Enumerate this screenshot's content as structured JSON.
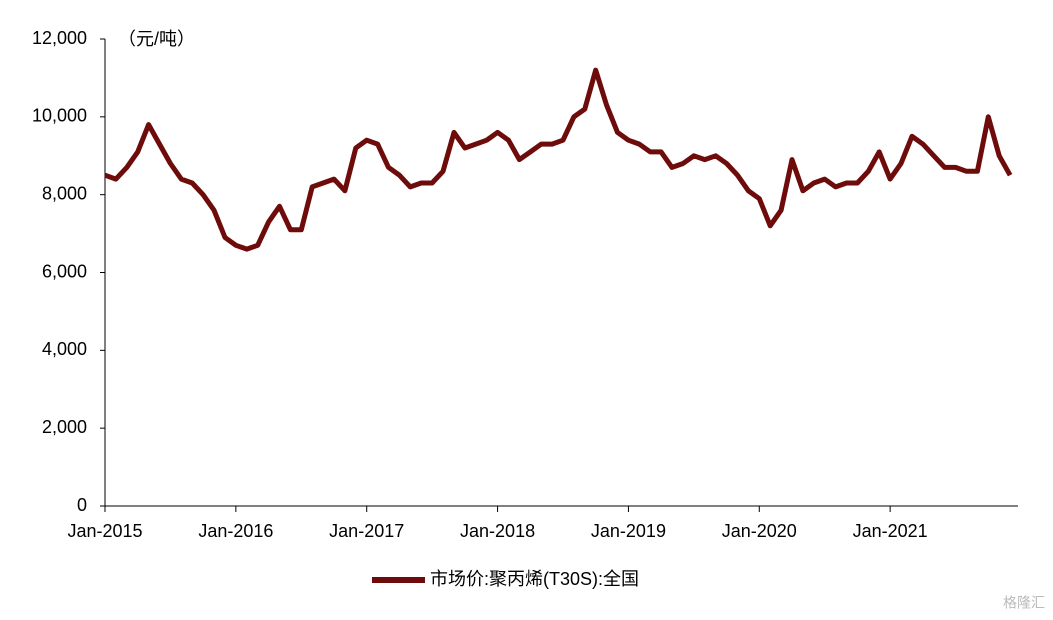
{
  "chart_data": {
    "type": "line",
    "unit_label": "（元/吨）",
    "x": [
      "2015-01",
      "2015-02",
      "2015-03",
      "2015-04",
      "2015-05",
      "2015-06",
      "2015-07",
      "2015-08",
      "2015-09",
      "2015-10",
      "2015-11",
      "2015-12",
      "2016-01",
      "2016-02",
      "2016-03",
      "2016-04",
      "2016-05",
      "2016-06",
      "2016-07",
      "2016-08",
      "2016-09",
      "2016-10",
      "2016-11",
      "2016-12",
      "2017-01",
      "2017-02",
      "2017-03",
      "2017-04",
      "2017-05",
      "2017-06",
      "2017-07",
      "2017-08",
      "2017-09",
      "2017-10",
      "2017-11",
      "2017-12",
      "2018-01",
      "2018-02",
      "2018-03",
      "2018-04",
      "2018-05",
      "2018-06",
      "2018-07",
      "2018-08",
      "2018-09",
      "2018-10",
      "2018-11",
      "2018-12",
      "2019-01",
      "2019-02",
      "2019-03",
      "2019-04",
      "2019-05",
      "2019-06",
      "2019-07",
      "2019-08",
      "2019-09",
      "2019-10",
      "2019-11",
      "2019-12",
      "2020-01",
      "2020-02",
      "2020-03",
      "2020-04",
      "2020-05",
      "2020-06",
      "2020-07",
      "2020-08",
      "2020-09",
      "2020-10",
      "2020-11",
      "2020-12",
      "2021-01",
      "2021-02",
      "2021-03",
      "2021-04",
      "2021-05",
      "2021-06",
      "2021-07",
      "2021-08",
      "2021-09",
      "2021-10",
      "2021-11",
      "2021-12"
    ],
    "series": [
      {
        "name": "市场价:聚丙烯(T30S):全国",
        "color": "#6e0b0b",
        "values": [
          8500,
          8400,
          8700,
          9100,
          9800,
          9300,
          8800,
          8400,
          8300,
          8000,
          7600,
          6900,
          6700,
          6600,
          6700,
          7300,
          7700,
          7100,
          7100,
          8200,
          8300,
          8400,
          8100,
          9200,
          9400,
          9300,
          8700,
          8500,
          8200,
          8300,
          8300,
          8600,
          9600,
          9200,
          9300,
          9400,
          9600,
          9400,
          8900,
          9100,
          9300,
          9300,
          9400,
          10000,
          10200,
          11200,
          10300,
          9600,
          9400,
          9300,
          9100,
          9100,
          8700,
          8800,
          9000,
          8900,
          9000,
          8800,
          8500,
          8100,
          7900,
          7200,
          7600,
          8900,
          8100,
          8300,
          8400,
          8200,
          8300,
          8300,
          8600,
          9100,
          8400,
          8800,
          9500,
          9300,
          9000,
          8700,
          8700,
          8600,
          8600,
          10000,
          9000,
          8500
        ]
      }
    ],
    "xlim": [
      "2015-01",
      "2022-01"
    ],
    "xticks": [
      {
        "value": "2015-01",
        "label": "Jan-2015"
      },
      {
        "value": "2016-01",
        "label": "Jan-2016"
      },
      {
        "value": "2017-01",
        "label": "Jan-2017"
      },
      {
        "value": "2018-01",
        "label": "Jan-2018"
      },
      {
        "value": "2019-01",
        "label": "Jan-2019"
      },
      {
        "value": "2020-01",
        "label": "Jan-2020"
      },
      {
        "value": "2021-01",
        "label": "Jan-2021"
      }
    ],
    "ylim": [
      0,
      12000
    ],
    "yticks": [
      0,
      {
        "value": 2000,
        "label": "2,000"
      },
      {
        "value": 4000,
        "label": "4,000"
      },
      {
        "value": 6000,
        "label": "6,000"
      },
      {
        "value": 8000,
        "label": "8,000"
      },
      {
        "value": 10000,
        "label": "10,000"
      },
      {
        "value": 12000,
        "label": "12,000"
      }
    ],
    "grid": false,
    "legend": "bottom",
    "watermark": "格隆汇"
  }
}
